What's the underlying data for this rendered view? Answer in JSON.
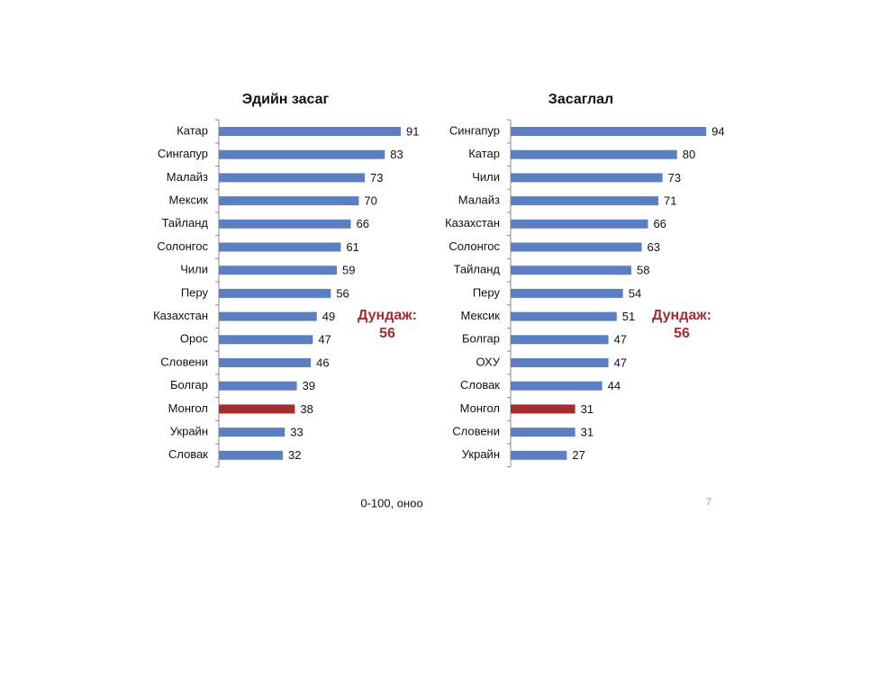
{
  "chart_data": [
    {
      "type": "bar",
      "orientation": "horizontal",
      "title": "Эдийн засаг",
      "categories": [
        "Катар",
        "Сингапур",
        "Малайз",
        "Мексик",
        "Тайланд",
        "Солонгос",
        "Чили",
        "Перу",
        "Казахстан",
        "Орос",
        "Словени",
        "Болгар",
        "Монгол",
        "Украйн",
        "Словак"
      ],
      "values": [
        91,
        83,
        73,
        70,
        66,
        61,
        59,
        56,
        49,
        47,
        46,
        39,
        38,
        33,
        32
      ],
      "colors": [
        "#5b7fc1",
        "#5b7fc1",
        "#5b7fc1",
        "#5b7fc1",
        "#5b7fc1",
        "#5b7fc1",
        "#5b7fc1",
        "#5b7fc1",
        "#5b7fc1",
        "#5b7fc1",
        "#5b7fc1",
        "#5b7fc1",
        "#a52d2d",
        "#5b7fc1",
        "#5b7fc1"
      ],
      "xlim": [
        0,
        100
      ],
      "annotation": [
        "Дундаж:",
        "56"
      ],
      "annotation_color": "#a52d2d"
    },
    {
      "type": "bar",
      "orientation": "horizontal",
      "title": "Засаглал",
      "categories": [
        "Сингапур",
        "Катар",
        "Чили",
        "Малайз",
        "Казахстан",
        "Солонгос",
        "Тайланд",
        "Перу",
        "Мексик",
        "Болгар",
        "ОХУ",
        "Словак",
        "Монгол",
        "Словени",
        "Украйн"
      ],
      "values": [
        94,
        80,
        73,
        71,
        66,
        63,
        58,
        54,
        51,
        47,
        47,
        44,
        31,
        31,
        27
      ],
      "colors": [
        "#5b7fc1",
        "#5b7fc1",
        "#5b7fc1",
        "#5b7fc1",
        "#5b7fc1",
        "#5b7fc1",
        "#5b7fc1",
        "#5b7fc1",
        "#5b7fc1",
        "#5b7fc1",
        "#5b7fc1",
        "#5b7fc1",
        "#a52d2d",
        "#5b7fc1",
        "#5b7fc1"
      ],
      "xlim": [
        0,
        100
      ],
      "annotation": [
        "Дундаж:",
        "56"
      ],
      "annotation_color": "#a52d2d"
    }
  ],
  "footnote": "0-100, оноо",
  "page_number": "7"
}
